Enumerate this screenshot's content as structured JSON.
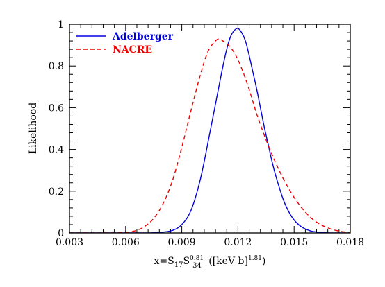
{
  "chart_data": {
    "type": "line",
    "xlabel": "x=S17S34^0.81 ([keV b]^1.81)",
    "xlabel_parts": {
      "prefix": "x=S",
      "sub1": "17",
      "mid": "S",
      "sub2": "34",
      "sup2": "0.81",
      "units_open": " ([keV b]",
      "units_sup": "1.81",
      "units_close": ")"
    },
    "ylabel": "Likelihood",
    "xlim": [
      0.003,
      0.018
    ],
    "ylim": [
      0,
      1
    ],
    "x_ticks": [
      0.003,
      0.006,
      0.009,
      0.012,
      0.015,
      0.018
    ],
    "x_tick_labels": [
      "0.003",
      "0.006",
      "0.009",
      "0.012",
      "0.015",
      "0.018"
    ],
    "y_ticks": [
      0,
      0.2,
      0.4,
      0.6,
      0.8,
      1
    ],
    "y_tick_labels": [
      "0",
      "0.2",
      "0.4",
      "0.6",
      "0.8",
      "1"
    ],
    "grid": false,
    "legend_position": "top-left",
    "series": [
      {
        "name": "Adelberger",
        "color": "#0000dd",
        "dash": "solid",
        "x": [
          0.003,
          0.006,
          0.007,
          0.0075,
          0.008,
          0.0085,
          0.009,
          0.0095,
          0.01,
          0.0105,
          0.011,
          0.0112,
          0.0114,
          0.0116,
          0.0118,
          0.012,
          0.0122,
          0.0124,
          0.0126,
          0.0128,
          0.013,
          0.0132,
          0.0134,
          0.0136,
          0.0138,
          0.014,
          0.0142,
          0.0144,
          0.0146,
          0.0148,
          0.015,
          0.0152,
          0.0154,
          0.0156,
          0.0158,
          0.016,
          0.0165,
          0.017,
          0.018
        ],
        "y": [
          0,
          0,
          0,
          0.001,
          0.004,
          0.012,
          0.04,
          0.11,
          0.26,
          0.48,
          0.71,
          0.8,
          0.88,
          0.94,
          0.97,
          0.98,
          0.96,
          0.92,
          0.85,
          0.77,
          0.69,
          0.6,
          0.51,
          0.43,
          0.35,
          0.28,
          0.22,
          0.165,
          0.122,
          0.088,
          0.062,
          0.043,
          0.029,
          0.019,
          0.012,
          0.007,
          0.002,
          0,
          0
        ]
      },
      {
        "name": "NACRE",
        "color": "#ee0000",
        "dash": "dashed",
        "x": [
          0.003,
          0.005,
          0.0055,
          0.006,
          0.0065,
          0.007,
          0.0075,
          0.008,
          0.0085,
          0.009,
          0.0095,
          0.01,
          0.0104,
          0.0108,
          0.011,
          0.0112,
          0.0116,
          0.012,
          0.0124,
          0.0128,
          0.013,
          0.0134,
          0.0138,
          0.0142,
          0.0146,
          0.015,
          0.0155,
          0.016,
          0.0165,
          0.017,
          0.0175,
          0.018
        ],
        "y": [
          0,
          0,
          0.001,
          0.003,
          0.01,
          0.03,
          0.07,
          0.14,
          0.25,
          0.41,
          0.59,
          0.76,
          0.87,
          0.92,
          0.93,
          0.92,
          0.89,
          0.83,
          0.74,
          0.63,
          0.57,
          0.47,
          0.38,
          0.3,
          0.23,
          0.17,
          0.11,
          0.065,
          0.036,
          0.018,
          0.007,
          0.002
        ]
      }
    ]
  }
}
